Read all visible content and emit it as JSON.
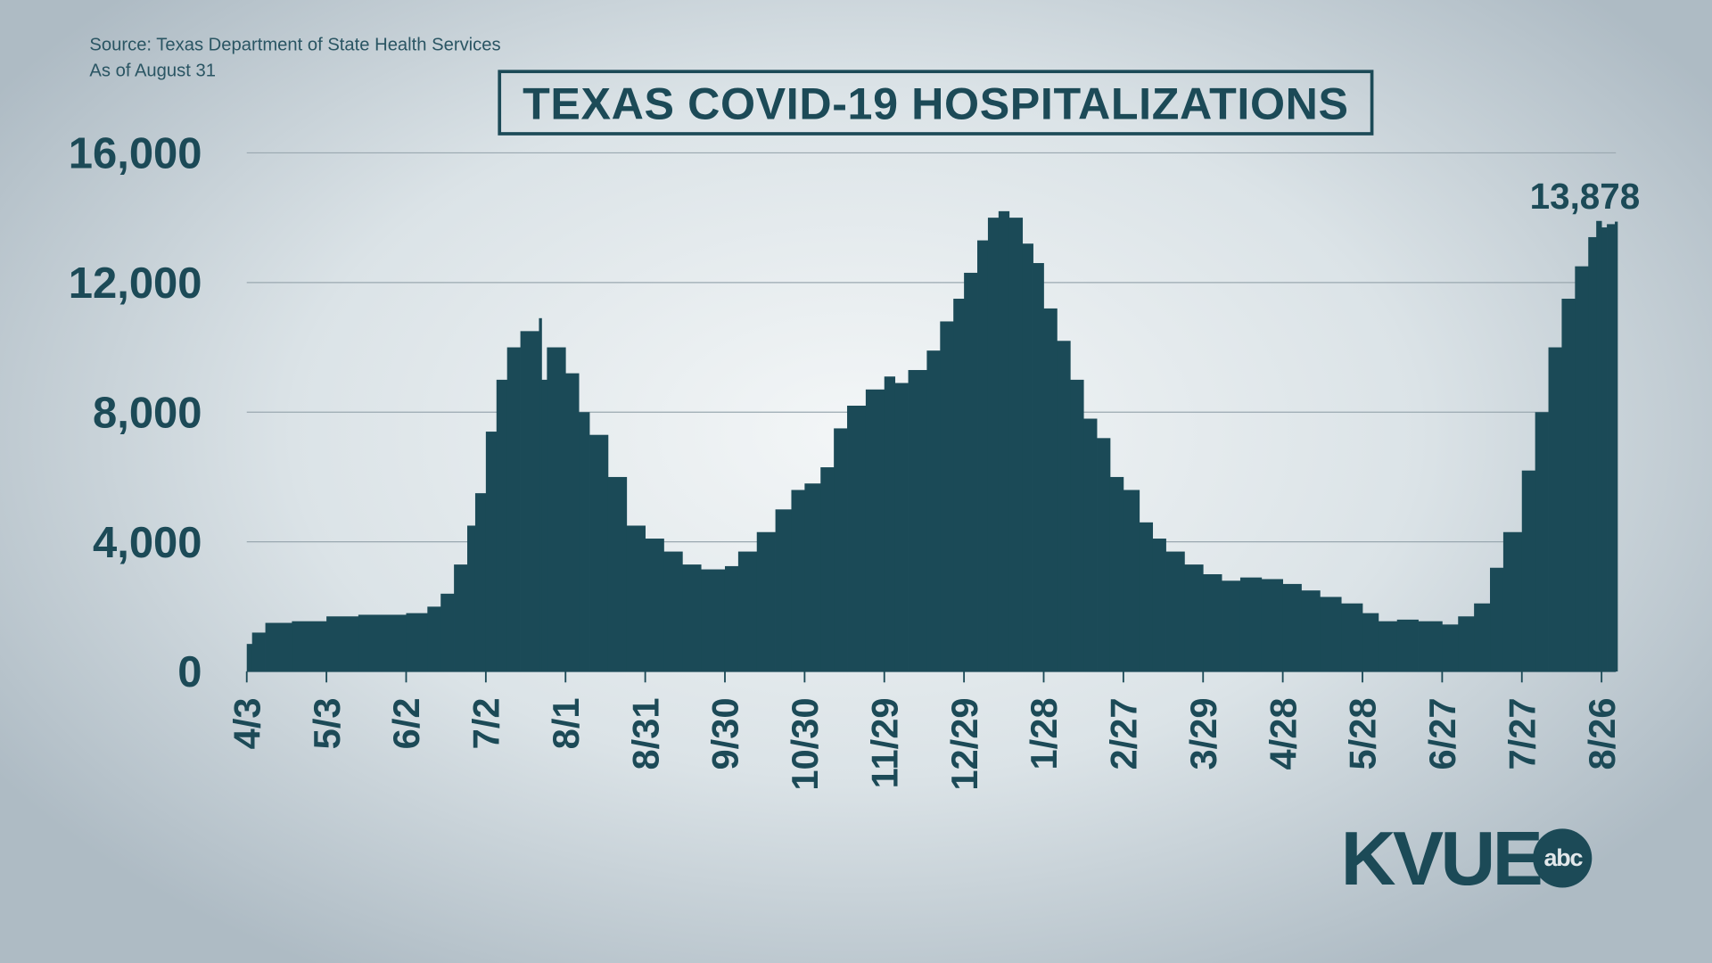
{
  "source": "Source: Texas Department of State Health Services",
  "asof": "As of August 31",
  "logo": {
    "text": "KVUE",
    "network": "abc"
  },
  "chart_data": {
    "type": "bar",
    "title": "TEXAS COVID-19 HOSPITALIZATIONS",
    "xlabel": "",
    "ylabel": "",
    "ylim": [
      0,
      16000
    ],
    "yticks": [
      0,
      4000,
      8000,
      12000,
      16000
    ],
    "ytick_labels": [
      "0",
      "4,000",
      "8,000",
      "12,000",
      "16,000"
    ],
    "xtick_labels": [
      "4/3",
      "5/3",
      "6/2",
      "7/2",
      "8/1",
      "8/31",
      "9/30",
      "10/30",
      "11/29",
      "12/29",
      "1/28",
      "2/27",
      "3/29",
      "4/28",
      "5/28",
      "6/27",
      "7/27",
      "8/26"
    ],
    "xtick_dates": [
      "2020-04-03",
      "2020-05-03",
      "2020-06-02",
      "2020-07-02",
      "2020-08-01",
      "2020-08-31",
      "2020-09-30",
      "2020-10-30",
      "2020-11-29",
      "2020-12-29",
      "2021-01-28",
      "2021-02-27",
      "2021-03-29",
      "2021-04-28",
      "2021-05-28",
      "2021-06-27",
      "2021-07-27",
      "2021-08-26"
    ],
    "grid": true,
    "bar_color": "#1b4a57",
    "annotation": "13,878",
    "x": [
      "2020-04-03",
      "2020-04-05",
      "2020-04-10",
      "2020-04-20",
      "2020-05-03",
      "2020-05-15",
      "2020-06-02",
      "2020-06-10",
      "2020-06-15",
      "2020-06-20",
      "2020-06-25",
      "2020-06-28",
      "2020-07-02",
      "2020-07-06",
      "2020-07-10",
      "2020-07-15",
      "2020-07-22",
      "2020-07-23",
      "2020-07-25",
      "2020-08-01",
      "2020-08-06",
      "2020-08-10",
      "2020-08-17",
      "2020-08-24",
      "2020-08-31",
      "2020-09-07",
      "2020-09-14",
      "2020-09-21",
      "2020-09-30",
      "2020-10-05",
      "2020-10-12",
      "2020-10-19",
      "2020-10-25",
      "2020-10-30",
      "2020-11-05",
      "2020-11-10",
      "2020-11-15",
      "2020-11-22",
      "2020-11-29",
      "2020-12-03",
      "2020-12-08",
      "2020-12-15",
      "2020-12-20",
      "2020-12-25",
      "2020-12-29",
      "2021-01-03",
      "2021-01-07",
      "2021-01-11",
      "2021-01-15",
      "2021-01-20",
      "2021-01-24",
      "2021-01-28",
      "2021-02-02",
      "2021-02-07",
      "2021-02-12",
      "2021-02-17",
      "2021-02-22",
      "2021-02-27",
      "2021-03-05",
      "2021-03-10",
      "2021-03-15",
      "2021-03-22",
      "2021-03-29",
      "2021-04-05",
      "2021-04-12",
      "2021-04-20",
      "2021-04-28",
      "2021-05-05",
      "2021-05-12",
      "2021-05-20",
      "2021-05-28",
      "2021-06-03",
      "2021-06-10",
      "2021-06-18",
      "2021-06-27",
      "2021-07-03",
      "2021-07-09",
      "2021-07-15",
      "2021-07-20",
      "2021-07-27",
      "2021-08-01",
      "2021-08-06",
      "2021-08-11",
      "2021-08-16",
      "2021-08-21",
      "2021-08-24",
      "2021-08-26",
      "2021-08-28",
      "2021-08-31"
    ],
    "values": [
      850,
      1200,
      1500,
      1550,
      1700,
      1750,
      1800,
      2000,
      2400,
      3300,
      4500,
      5500,
      7400,
      9000,
      10000,
      10500,
      10900,
      9000,
      10000,
      9200,
      8000,
      7300,
      6000,
      4500,
      4100,
      3700,
      3300,
      3150,
      3250,
      3700,
      4300,
      5000,
      5600,
      5800,
      6300,
      7500,
      8200,
      8700,
      9100,
      8900,
      9300,
      9900,
      10800,
      11500,
      12300,
      13300,
      14000,
      14200,
      14000,
      13200,
      12600,
      11200,
      10200,
      9000,
      7800,
      7200,
      6000,
      5600,
      4600,
      4100,
      3700,
      3300,
      3000,
      2800,
      2900,
      2850,
      2700,
      2500,
      2300,
      2100,
      1800,
      1550,
      1600,
      1550,
      1450,
      1700,
      2100,
      3200,
      4300,
      6200,
      8000,
      10000,
      11500,
      12500,
      13400,
      13900,
      13700,
      13800,
      13878
    ]
  }
}
